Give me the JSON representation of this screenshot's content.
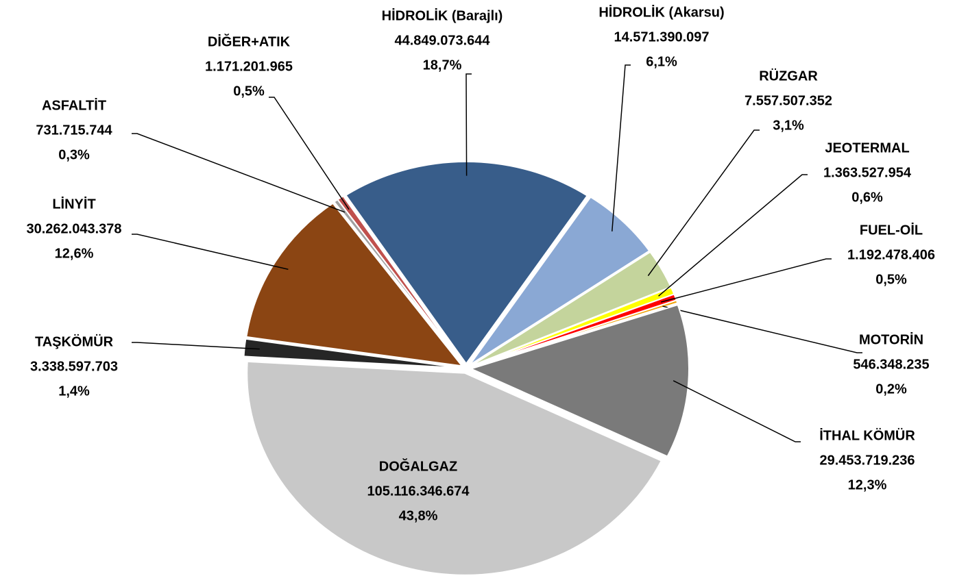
{
  "chart_data": {
    "type": "pie",
    "categories": [
      "HİDROLİK (Barajlı)",
      "HİDROLİK (Akarsu)",
      "RÜZGAR",
      "JEOTERMAL",
      "FUEL-OİL",
      "MOTORİN",
      "İTHAL KÖMÜR",
      "DOĞALGAZ",
      "TAŞKÖMÜR",
      "LİNYİT",
      "ASFALTİT",
      "DİĞER+ATIK"
    ],
    "values": [
      44849073644,
      14571390097,
      7557507352,
      1363527954,
      1192478406,
      546348235,
      29453719236,
      105116346674,
      3338597703,
      30262043378,
      731715744,
      1171201965
    ],
    "value_labels": [
      "44.849.073.644",
      "14.571.390.097",
      "7.557.507.352",
      "1.363.527.954",
      "1.192.478.406",
      "546.348.235",
      "29.453.719.236",
      "105.116.346.674",
      "3.338.597.703",
      "30.262.043.378",
      "731.715.744",
      "1.171.201.965"
    ],
    "percent_labels": [
      "18,7%",
      "6,1%",
      "3,1%",
      "0,6%",
      "0,5%",
      "0,2%",
      "12,3%",
      "43,8%",
      "1,4%",
      "12,6%",
      "0,3%",
      "0,5%"
    ],
    "colors": [
      "#385d8a",
      "#8aa8d4",
      "#c4d49c",
      "#ffff00",
      "#ff0000",
      "#f0a30a",
      "#7a7a7a",
      "#c8c8c8",
      "#262626",
      "#8b4513",
      "#a0a0a0",
      "#c0504d"
    ]
  }
}
